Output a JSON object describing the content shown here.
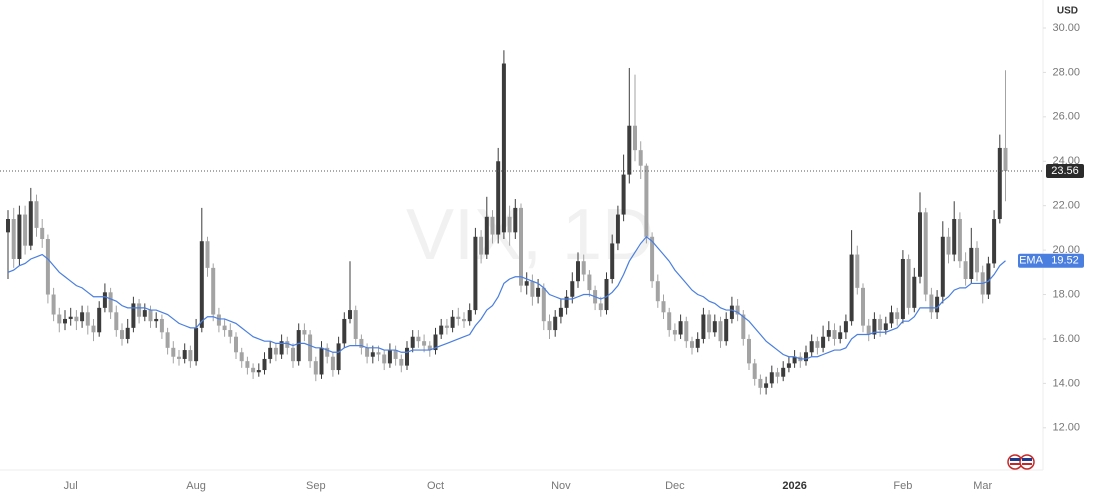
{
  "chart_data": {
    "type": "candlestick",
    "symbol": "VIX, 1D",
    "currency": "USD",
    "up_color": "#3c3c3c",
    "down_color": "#a3a3a3",
    "ylim": [
      10.1,
      31.26
    ],
    "yticks": [
      {
        "value": 12,
        "label": "12.00"
      },
      {
        "value": 14,
        "label": "14.00"
      },
      {
        "value": 16,
        "label": "16.00"
      },
      {
        "value": 18,
        "label": "18.00"
      },
      {
        "value": 20,
        "label": "20.00"
      },
      {
        "value": 22,
        "label": "22.00"
      },
      {
        "value": 24,
        "label": "24.00"
      },
      {
        "value": 26,
        "label": "26.00"
      },
      {
        "value": 28,
        "label": "28.00"
      },
      {
        "value": 30,
        "label": "30.00"
      }
    ],
    "categories": [
      null,
      null,
      null,
      null,
      null,
      null,
      null,
      null,
      null,
      null,
      null,
      "Jul",
      null,
      null,
      null,
      null,
      null,
      null,
      null,
      null,
      null,
      null,
      null,
      null,
      null,
      null,
      null,
      null,
      null,
      null,
      null,
      null,
      null,
      "Aug",
      null,
      null,
      null,
      null,
      null,
      null,
      null,
      null,
      null,
      null,
      null,
      null,
      null,
      null,
      null,
      null,
      null,
      null,
      null,
      null,
      "Sep",
      null,
      null,
      null,
      null,
      null,
      null,
      null,
      null,
      null,
      null,
      null,
      null,
      null,
      null,
      null,
      null,
      null,
      null,
      null,
      null,
      "Oct",
      null,
      null,
      null,
      null,
      null,
      null,
      null,
      null,
      null,
      null,
      null,
      null,
      null,
      null,
      null,
      null,
      null,
      null,
      null,
      null,
      null,
      "Nov",
      null,
      null,
      null,
      null,
      null,
      null,
      null,
      null,
      null,
      null,
      null,
      null,
      null,
      null,
      null,
      null,
      null,
      null,
      null,
      "Dec",
      null,
      null,
      null,
      null,
      null,
      null,
      null,
      null,
      null,
      null,
      null,
      null,
      null,
      null,
      null,
      null,
      null,
      null,
      null,
      null,
      "2026",
      null,
      null,
      null,
      null,
      null,
      null,
      null,
      null,
      null,
      null,
      null,
      null,
      null,
      null,
      null,
      null,
      null,
      null,
      "Feb",
      null,
      null,
      null,
      null,
      null,
      null,
      null,
      null,
      null,
      null,
      null,
      null,
      null,
      "Mar",
      null,
      null,
      null,
      null
    ],
    "candles": [
      [
        20.8,
        21.8,
        18.7,
        21.4
      ],
      [
        21.4,
        21.9,
        19.2,
        19.6
      ],
      [
        19.6,
        22.0,
        19.3,
        21.6
      ],
      [
        21.6,
        22.0,
        19.8,
        20.2
      ],
      [
        20.2,
        22.8,
        20.0,
        22.2
      ],
      [
        22.2,
        22.5,
        20.6,
        21.0
      ],
      [
        21.0,
        21.4,
        20.1,
        20.5
      ],
      [
        20.5,
        20.7,
        17.6,
        18.0
      ],
      [
        18.0,
        18.3,
        16.8,
        17.1
      ],
      [
        17.1,
        17.4,
        16.3,
        16.7
      ],
      [
        16.7,
        17.3,
        16.4,
        16.9
      ],
      [
        16.9,
        17.4,
        16.6,
        17.0
      ],
      [
        17.0,
        17.3,
        16.4,
        16.8
      ],
      [
        16.8,
        17.5,
        16.5,
        17.2
      ],
      [
        17.2,
        17.5,
        16.2,
        16.6
      ],
      [
        16.6,
        16.9,
        15.9,
        16.3
      ],
      [
        16.3,
        17.7,
        16.1,
        17.4
      ],
      [
        17.4,
        18.5,
        17.2,
        18.1
      ],
      [
        18.1,
        18.3,
        16.9,
        17.2
      ],
      [
        17.2,
        17.5,
        16.1,
        16.4
      ],
      [
        16.4,
        16.7,
        15.7,
        16.0
      ],
      [
        16.0,
        16.9,
        15.8,
        16.5
      ],
      [
        16.5,
        17.9,
        16.3,
        17.6
      ],
      [
        17.6,
        17.8,
        16.7,
        17.0
      ],
      [
        17.0,
        17.6,
        16.8,
        17.3
      ],
      [
        17.3,
        17.5,
        16.5,
        16.8
      ],
      [
        16.8,
        17.2,
        16.5,
        16.9
      ],
      [
        16.9,
        17.1,
        16.0,
        16.3
      ],
      [
        16.3,
        16.5,
        15.3,
        15.6
      ],
      [
        15.6,
        15.9,
        14.9,
        15.2
      ],
      [
        15.2,
        15.5,
        14.8,
        15.1
      ],
      [
        15.1,
        15.8,
        14.9,
        15.5
      ],
      [
        15.5,
        15.7,
        14.7,
        15.0
      ],
      [
        15.0,
        16.9,
        14.8,
        16.5
      ],
      [
        16.5,
        21.9,
        16.3,
        20.4
      ],
      [
        20.4,
        20.6,
        18.8,
        19.2
      ],
      [
        19.2,
        19.4,
        16.8,
        17.1
      ],
      [
        17.1,
        17.4,
        16.3,
        16.6
      ],
      [
        16.6,
        16.9,
        16.1,
        16.4
      ],
      [
        16.4,
        16.7,
        15.8,
        16.1
      ],
      [
        16.1,
        16.3,
        15.1,
        15.4
      ],
      [
        15.4,
        15.6,
        14.7,
        15.0
      ],
      [
        15.0,
        15.2,
        14.4,
        14.7
      ],
      [
        14.7,
        14.9,
        14.2,
        14.5
      ],
      [
        14.5,
        14.9,
        14.3,
        14.6
      ],
      [
        14.6,
        15.4,
        14.4,
        15.1
      ],
      [
        15.1,
        15.9,
        14.9,
        15.6
      ],
      [
        15.6,
        15.8,
        15.0,
        15.3
      ],
      [
        15.3,
        16.2,
        15.1,
        15.9
      ],
      [
        15.9,
        16.1,
        15.3,
        15.6
      ],
      [
        15.6,
        15.8,
        14.7,
        15.0
      ],
      [
        15.0,
        16.7,
        14.8,
        16.4
      ],
      [
        16.4,
        16.7,
        15.9,
        16.2
      ],
      [
        16.2,
        16.4,
        14.7,
        15.0
      ],
      [
        15.0,
        15.2,
        14.1,
        14.4
      ],
      [
        14.4,
        15.9,
        14.2,
        15.6
      ],
      [
        15.6,
        15.8,
        14.9,
        15.2
      ],
      [
        15.2,
        15.4,
        14.3,
        14.6
      ],
      [
        14.6,
        16.1,
        14.4,
        15.8
      ],
      [
        15.8,
        17.2,
        15.6,
        16.9
      ],
      [
        16.9,
        19.5,
        16.7,
        17.3
      ],
      [
        17.3,
        17.5,
        15.7,
        16.0
      ],
      [
        16.0,
        16.2,
        15.3,
        15.6
      ],
      [
        15.6,
        15.8,
        14.9,
        15.2
      ],
      [
        15.2,
        15.7,
        14.9,
        15.4
      ],
      [
        15.4,
        15.7,
        15.0,
        15.3
      ],
      [
        15.3,
        15.5,
        14.6,
        14.9
      ],
      [
        14.9,
        15.8,
        14.7,
        15.5
      ],
      [
        15.5,
        15.7,
        14.8,
        15.1
      ],
      [
        15.1,
        15.3,
        14.5,
        14.8
      ],
      [
        14.8,
        15.9,
        14.6,
        15.6
      ],
      [
        15.6,
        16.4,
        15.4,
        16.1
      ],
      [
        16.1,
        16.4,
        15.6,
        15.9
      ],
      [
        15.9,
        16.2,
        15.4,
        15.7
      ],
      [
        15.7,
        15.9,
        15.2,
        15.5
      ],
      [
        15.5,
        16.5,
        15.3,
        16.2
      ],
      [
        16.2,
        16.9,
        16.0,
        16.6
      ],
      [
        16.6,
        16.9,
        16.2,
        16.5
      ],
      [
        16.5,
        17.3,
        16.3,
        17.0
      ],
      [
        17.0,
        17.4,
        16.6,
        16.9
      ],
      [
        16.9,
        17.2,
        16.5,
        16.8
      ],
      [
        16.8,
        17.6,
        16.6,
        17.3
      ],
      [
        17.3,
        21.0,
        17.1,
        20.6
      ],
      [
        20.6,
        20.9,
        19.4,
        19.8
      ],
      [
        19.8,
        22.4,
        19.6,
        21.5
      ],
      [
        21.5,
        21.8,
        20.3,
        20.7
      ],
      [
        20.7,
        24.6,
        20.3,
        24.0
      ],
      [
        20.8,
        29.0,
        20.5,
        28.4
      ],
      [
        21.5,
        22.0,
        20.2,
        20.8
      ],
      [
        20.8,
        22.3,
        20.5,
        21.9
      ],
      [
        21.9,
        22.1,
        18.1,
        18.4
      ],
      [
        18.4,
        19.0,
        18.0,
        18.6
      ],
      [
        18.6,
        18.9,
        17.5,
        17.9
      ],
      [
        17.9,
        18.7,
        17.6,
        18.3
      ],
      [
        18.3,
        18.5,
        16.4,
        16.8
      ],
      [
        16.8,
        17.1,
        16.0,
        16.4
      ],
      [
        16.4,
        17.3,
        16.1,
        17.0
      ],
      [
        17.0,
        17.8,
        16.7,
        17.4
      ],
      [
        17.4,
        18.2,
        17.1,
        17.9
      ],
      [
        17.9,
        19.0,
        17.6,
        18.6
      ],
      [
        18.6,
        19.9,
        18.3,
        19.5
      ],
      [
        19.5,
        19.8,
        18.6,
        18.9
      ],
      [
        18.9,
        19.1,
        17.9,
        18.2
      ],
      [
        18.2,
        18.4,
        17.3,
        17.6
      ],
      [
        17.6,
        17.9,
        17.0,
        17.3
      ],
      [
        17.3,
        19.0,
        17.1,
        18.7
      ],
      [
        18.7,
        20.7,
        18.5,
        20.3
      ],
      [
        20.3,
        22.0,
        20.0,
        21.6
      ],
      [
        21.6,
        24.3,
        21.3,
        23.4
      ],
      [
        23.4,
        28.2,
        23.0,
        25.6
      ],
      [
        25.6,
        27.9,
        24.0,
        24.5
      ],
      [
        24.5,
        24.9,
        23.2,
        23.8
      ],
      [
        23.8,
        23.9,
        20.3,
        20.6
      ],
      [
        20.6,
        20.8,
        18.3,
        18.6
      ],
      [
        18.6,
        18.9,
        17.4,
        17.7
      ],
      [
        17.7,
        18.0,
        16.9,
        17.2
      ],
      [
        17.2,
        17.4,
        16.1,
        16.4
      ],
      [
        16.4,
        16.7,
        15.9,
        16.2
      ],
      [
        16.2,
        17.1,
        16.0,
        16.8
      ],
      [
        16.8,
        17.0,
        15.6,
        15.9
      ],
      [
        15.9,
        16.1,
        15.3,
        15.6
      ],
      [
        15.6,
        16.3,
        15.4,
        16.0
      ],
      [
        16.0,
        17.4,
        15.8,
        17.1
      ],
      [
        17.1,
        17.3,
        16.0,
        16.3
      ],
      [
        16.3,
        17.1,
        16.1,
        16.8
      ],
      [
        16.8,
        17.0,
        15.6,
        15.9
      ],
      [
        15.9,
        17.2,
        15.7,
        16.9
      ],
      [
        16.9,
        17.9,
        16.7,
        17.5
      ],
      [
        17.5,
        17.8,
        16.8,
        17.1
      ],
      [
        17.1,
        17.3,
        15.7,
        16.0
      ],
      [
        16.0,
        16.2,
        14.6,
        14.9
      ],
      [
        14.9,
        15.1,
        13.9,
        14.2
      ],
      [
        14.2,
        14.4,
        13.5,
        13.8
      ],
      [
        13.8,
        14.3,
        13.5,
        14.0
      ],
      [
        14.0,
        14.8,
        13.8,
        14.5
      ],
      [
        14.5,
        14.7,
        14.0,
        14.3
      ],
      [
        14.3,
        15.0,
        14.1,
        14.7
      ],
      [
        14.7,
        15.2,
        14.5,
        14.9
      ],
      [
        14.9,
        15.5,
        14.7,
        15.2
      ],
      [
        15.2,
        15.4,
        14.7,
        15.0
      ],
      [
        15.0,
        15.7,
        14.8,
        15.4
      ],
      [
        15.4,
        16.2,
        15.2,
        15.9
      ],
      [
        15.9,
        16.1,
        15.3,
        15.6
      ],
      [
        15.6,
        16.6,
        15.4,
        16.1
      ],
      [
        16.1,
        16.8,
        15.9,
        16.4
      ],
      [
        16.4,
        16.7,
        15.7,
        16.0
      ],
      [
        16.0,
        16.6,
        15.8,
        16.3
      ],
      [
        16.3,
        17.1,
        16.0,
        16.8
      ],
      [
        16.8,
        20.9,
        16.6,
        19.8
      ],
      [
        19.8,
        20.2,
        18.0,
        18.3
      ],
      [
        18.3,
        18.5,
        16.3,
        16.6
      ],
      [
        16.6,
        16.9,
        15.9,
        16.2
      ],
      [
        16.2,
        17.2,
        16.0,
        16.9
      ],
      [
        16.9,
        17.1,
        16.1,
        16.4
      ],
      [
        16.4,
        17.0,
        16.2,
        16.7
      ],
      [
        16.7,
        17.5,
        16.5,
        17.2
      ],
      [
        17.2,
        17.4,
        16.6,
        16.9
      ],
      [
        16.9,
        20.0,
        16.7,
        19.6
      ],
      [
        19.6,
        19.8,
        17.1,
        17.4
      ],
      [
        17.4,
        19.2,
        17.2,
        18.8
      ],
      [
        18.8,
        22.6,
        18.5,
        21.7
      ],
      [
        21.7,
        21.9,
        17.7,
        18.0
      ],
      [
        18.0,
        18.3,
        16.9,
        17.2
      ],
      [
        17.2,
        18.2,
        16.9,
        17.9
      ],
      [
        17.9,
        21.3,
        17.6,
        20.6
      ],
      [
        20.6,
        21.0,
        19.4,
        19.8
      ],
      [
        19.8,
        22.2,
        19.5,
        21.4
      ],
      [
        21.4,
        21.7,
        19.2,
        19.5
      ],
      [
        19.5,
        19.9,
        18.4,
        18.7
      ],
      [
        18.7,
        21.0,
        18.5,
        20.1
      ],
      [
        20.1,
        20.4,
        18.6,
        19.0
      ],
      [
        19.0,
        19.3,
        17.6,
        18.0
      ],
      [
        18.0,
        19.7,
        17.8,
        19.4
      ],
      [
        19.4,
        21.8,
        19.2,
        21.4
      ],
      [
        21.4,
        25.2,
        21.2,
        24.6
      ],
      [
        24.6,
        28.1,
        22.2,
        23.56
      ]
    ],
    "ema": {
      "name": "EMA",
      "color": "#4a7fe0",
      "values": [
        19.0,
        19.1,
        19.3,
        19.4,
        19.6,
        19.7,
        19.8,
        19.6,
        19.3,
        19.0,
        18.8,
        18.6,
        18.4,
        18.3,
        18.1,
        17.9,
        17.9,
        17.9,
        17.8,
        17.7,
        17.5,
        17.4,
        17.4,
        17.4,
        17.4,
        17.3,
        17.3,
        17.2,
        17.1,
        16.9,
        16.7,
        16.6,
        16.5,
        16.5,
        16.8,
        17.0,
        17.0,
        16.9,
        16.9,
        16.8,
        16.7,
        16.5,
        16.3,
        16.1,
        16.0,
        15.9,
        15.9,
        15.8,
        15.8,
        15.8,
        15.7,
        15.8,
        15.8,
        15.7,
        15.6,
        15.6,
        15.5,
        15.4,
        15.4,
        15.6,
        15.7,
        15.7,
        15.7,
        15.6,
        15.6,
        15.6,
        15.5,
        15.5,
        15.5,
        15.4,
        15.4,
        15.5,
        15.5,
        15.5,
        15.5,
        15.6,
        15.7,
        15.8,
        15.9,
        16.0,
        16.1,
        16.2,
        16.6,
        16.9,
        17.3,
        17.5,
        17.9,
        18.5,
        18.7,
        18.8,
        18.8,
        18.7,
        18.6,
        18.5,
        18.3,
        18.0,
        17.9,
        17.8,
        17.8,
        17.8,
        17.9,
        18.0,
        18.0,
        17.9,
        17.8,
        17.9,
        18.1,
        18.4,
        18.9,
        19.5,
        19.9,
        20.3,
        20.6,
        20.4,
        20.1,
        19.8,
        19.5,
        19.1,
        18.8,
        18.5,
        18.2,
        18.0,
        17.9,
        17.7,
        17.6,
        17.4,
        17.3,
        17.3,
        17.2,
        17.0,
        16.8,
        16.5,
        16.2,
        15.9,
        15.7,
        15.5,
        15.3,
        15.2,
        15.2,
        15.1,
        15.1,
        15.2,
        15.2,
        15.3,
        15.4,
        15.5,
        15.5,
        15.6,
        16.0,
        16.2,
        16.2,
        16.2,
        16.3,
        16.3,
        16.3,
        16.4,
        16.5,
        16.8,
        16.8,
        17.0,
        17.4,
        17.4,
        17.4,
        17.4,
        17.7,
        17.9,
        18.2,
        18.3,
        18.3,
        18.5,
        18.5,
        18.5,
        18.6,
        18.9,
        19.3,
        19.52
      ]
    }
  }
}
